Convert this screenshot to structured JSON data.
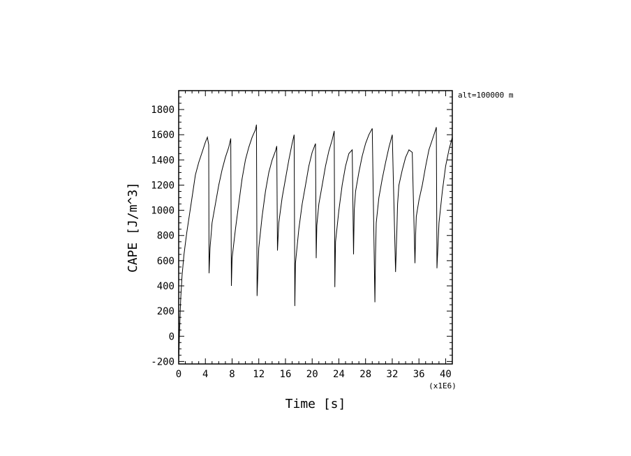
{
  "chart_data": {
    "type": "line",
    "title": "",
    "xlabel": "Time [s]",
    "ylabel": "CAPE [J/m^3]",
    "x_multiplier_label": "(x1E6)",
    "annotation": "alt=100000 m",
    "xlim": [
      0,
      41
    ],
    "ylim": [
      -220,
      1950
    ],
    "x_ticks": [
      0,
      4,
      8,
      12,
      16,
      20,
      24,
      28,
      32,
      36,
      40
    ],
    "y_ticks": [
      -200,
      0,
      200,
      400,
      600,
      800,
      1000,
      1200,
      1400,
      1600,
      1800
    ],
    "x_tick_labels": [
      "0",
      "4",
      "8",
      "12",
      "16",
      "20",
      "24",
      "28",
      "32",
      "36",
      "40"
    ],
    "y_tick_labels": [
      "-200",
      "0",
      "200",
      "400",
      "600",
      "800",
      "1000",
      "1200",
      "1400",
      "1600",
      "1800"
    ],
    "grid": false,
    "series": [
      {
        "color": "#000000",
        "x": [
          0,
          0.05,
          0.1,
          0.2,
          0.3,
          0.5,
          0.8,
          1.2,
          1.6,
          2.0,
          2.5,
          3.0,
          3.5,
          4.0,
          4.3,
          4.5,
          4.55,
          4.7,
          5.0,
          5.5,
          6.0,
          6.5,
          7.0,
          7.5,
          7.8,
          7.9,
          8.0,
          8.5,
          9.0,
          9.5,
          10.0,
          10.5,
          11.0,
          11.5,
          11.65,
          11.75,
          12.0,
          12.5,
          13.0,
          13.5,
          14.0,
          14.5,
          14.7,
          14.8,
          15.0,
          15.5,
          16.0,
          16.5,
          17.0,
          17.3,
          17.4,
          17.5,
          18.0,
          18.5,
          19.0,
          19.5,
          20.0,
          20.5,
          20.6,
          20.7,
          21.0,
          21.5,
          22.0,
          22.5,
          23.0,
          23.3,
          23.4,
          23.5,
          24.0,
          24.5,
          25.0,
          25.5,
          26.0,
          26.2,
          26.3,
          26.5,
          27.0,
          27.5,
          28.0,
          28.5,
          29.0,
          29.4,
          29.5,
          29.6,
          30.0,
          30.5,
          31.0,
          31.5,
          32.0,
          32.5,
          32.7,
          32.8,
          33.0,
          33.5,
          34.0,
          34.5,
          35.0,
          35.4,
          35.5,
          35.6,
          36.0,
          36.5,
          37.0,
          37.5,
          38.0,
          38.5,
          38.6,
          38.7,
          39.0,
          39.5,
          40.0,
          40.5,
          41.0
        ],
        "y": [
          -200,
          -120,
          0,
          150,
          300,
          480,
          650,
          820,
          960,
          1100,
          1280,
          1380,
          1460,
          1540,
          1580,
          1520,
          500,
          700,
          900,
          1050,
          1200,
          1320,
          1420,
          1500,
          1570,
          400,
          620,
          850,
          1050,
          1250,
          1400,
          1500,
          1580,
          1640,
          1680,
          320,
          700,
          950,
          1150,
          1300,
          1400,
          1470,
          1510,
          680,
          900,
          1100,
          1250,
          1400,
          1530,
          1600,
          240,
          580,
          850,
          1050,
          1200,
          1350,
          1460,
          1530,
          620,
          880,
          1050,
          1200,
          1350,
          1470,
          1560,
          1630,
          390,
          750,
          1000,
          1200,
          1350,
          1450,
          1480,
          650,
          1000,
          1150,
          1300,
          1430,
          1530,
          1600,
          1650,
          270,
          650,
          900,
          1100,
          1250,
          1380,
          1500,
          1600,
          510,
          850,
          1050,
          1200,
          1320,
          1420,
          1480,
          1460,
          580,
          800,
          950,
          1080,
          1200,
          1350,
          1480,
          1560,
          1640,
          1660,
          540,
          900,
          1150,
          1350,
          1480,
          1580
        ]
      }
    ]
  }
}
